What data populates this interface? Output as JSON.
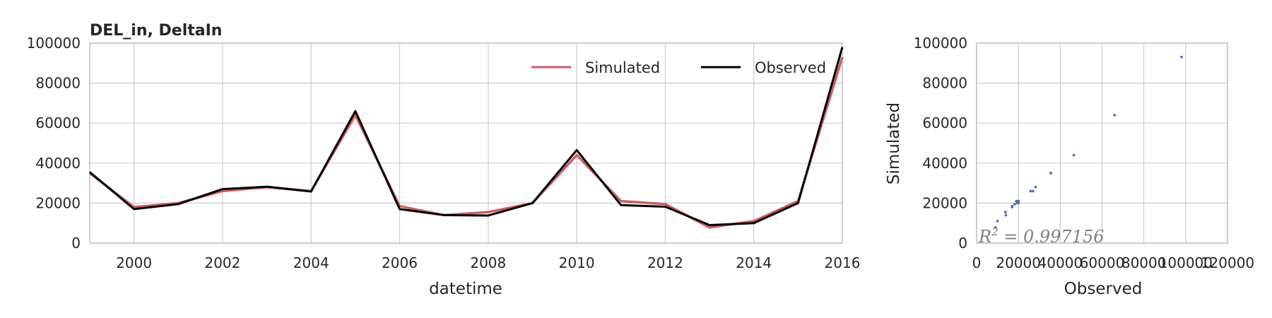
{
  "chart_data": [
    {
      "type": "line",
      "title": "DEL_in, DeltaIn",
      "xlabel": "datetime",
      "ylabel": "",
      "xlim": [
        1999,
        2016
      ],
      "ylim": [
        0,
        100000
      ],
      "x_ticks": [
        "2000",
        "2002",
        "2004",
        "2006",
        "2008",
        "2010",
        "2012",
        "2014",
        "2016"
      ],
      "y_ticks": [
        "0",
        "20000",
        "40000",
        "60000",
        "80000",
        "100000"
      ],
      "grid": true,
      "legend_position": "top-right",
      "x": [
        1999,
        2000,
        2001,
        2002,
        2003,
        2004,
        2005,
        2006,
        2007,
        2008,
        2009,
        2010,
        2011,
        2012,
        2013,
        2014,
        2015,
        2016
      ],
      "series": [
        {
          "name": "Simulated",
          "color": "#d15a5d",
          "values": [
            35000,
            18000,
            20000,
            26000,
            28000,
            26000,
            64000,
            18500,
            14000,
            15500,
            20000,
            44000,
            21000,
            19500,
            7800,
            11000,
            21000,
            93000
          ]
        },
        {
          "name": "Observed",
          "color": "#000000",
          "values": [
            35500,
            17000,
            19500,
            27000,
            28200,
            25800,
            66000,
            17000,
            14000,
            13800,
            20000,
            46500,
            19000,
            18200,
            9000,
            10000,
            20000,
            98000
          ]
        }
      ]
    },
    {
      "type": "scatter",
      "title": "",
      "xlabel": "Observed",
      "ylabel": "Simulated",
      "xlim": [
        0,
        120000
      ],
      "ylim": [
        0,
        100000
      ],
      "x_ticks": [
        "0",
        "20000",
        "40000",
        "60000",
        "80000",
        "100000",
        "120000"
      ],
      "y_ticks": [
        "0",
        "20000",
        "40000",
        "60000",
        "80000",
        "100000"
      ],
      "grid": true,
      "color": "#4c72b0",
      "annotation": "R^2 = 0.997156",
      "points": [
        [
          9000,
          7800
        ],
        [
          10000,
          11000
        ],
        [
          13800,
          15500
        ],
        [
          14000,
          14000
        ],
        [
          17000,
          18000
        ],
        [
          17000,
          18500
        ],
        [
          18200,
          19500
        ],
        [
          19000,
          21000
        ],
        [
          19500,
          20000
        ],
        [
          20000,
          20000
        ],
        [
          20000,
          21000
        ],
        [
          25800,
          26000
        ],
        [
          27000,
          26000
        ],
        [
          28200,
          28000
        ],
        [
          35500,
          35000
        ],
        [
          46500,
          44000
        ],
        [
          66000,
          64000
        ],
        [
          98000,
          93000
        ]
      ]
    }
  ]
}
